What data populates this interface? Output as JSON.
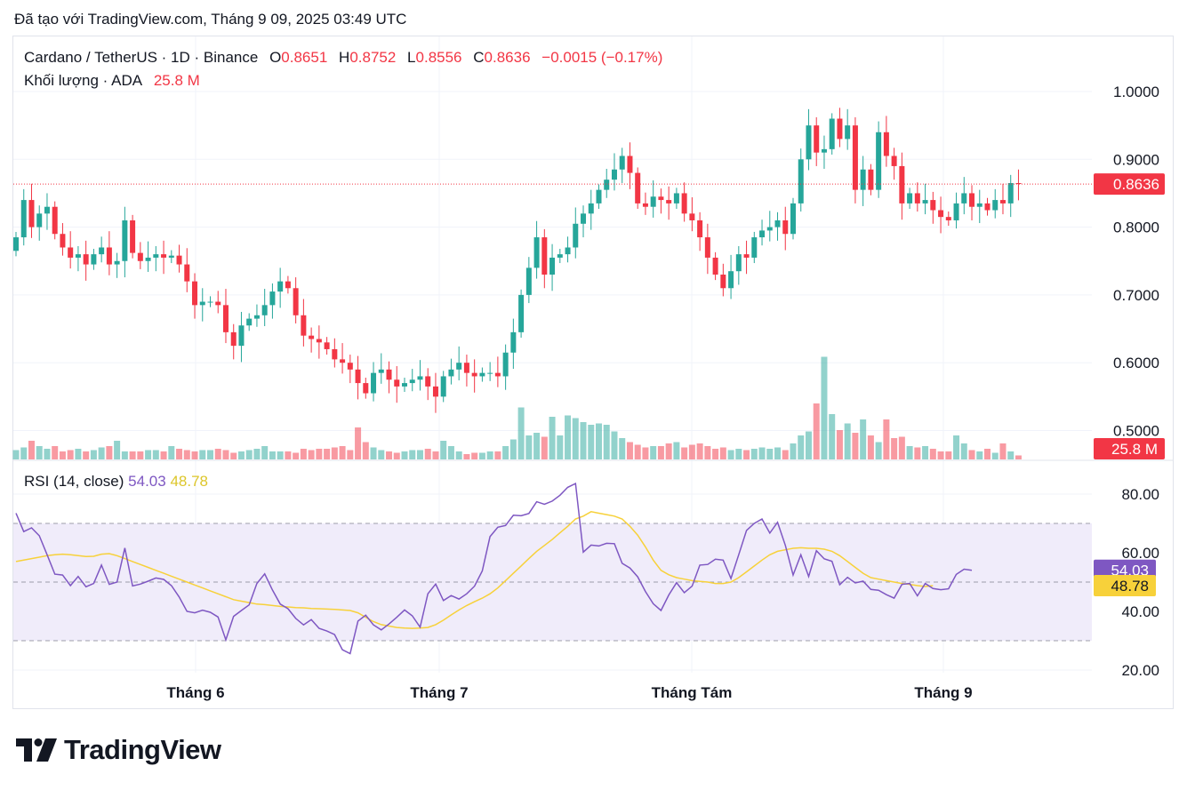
{
  "caption": "Đã tạo với TradingView.com, Tháng 9 09, 2025 03:49 UTC",
  "brand": "TradingView",
  "legend": {
    "symbol": "Cardano / TetherUS · 1D · Binance",
    "o_label": "O",
    "o_value": "0.8651",
    "h_label": "H",
    "h_value": "0.8752",
    "l_label": "L",
    "l_value": "0.8556",
    "c_label": "C",
    "c_value": "0.8636",
    "change": "−0.0015 (−0.17%)",
    "volume_label": "Khối lượng · ADA",
    "volume_value": "25.8 M"
  },
  "rsi_legend": {
    "label": "RSI (14, close)",
    "rsi_value": "54.03",
    "ma_value": "48.78"
  },
  "colors": {
    "up": "#26a69a",
    "down": "#f23645",
    "rsi": "#7e57c2",
    "rsi_ma": "#f7d13a",
    "rsi_band_fill": "#f0ecfa"
  },
  "chart_data": [
    {
      "type": "candlestick",
      "title": "Cardano / TetherUS · 1D · Binance",
      "price_axis_ticks": [
        "1.0000",
        "0.9000",
        "0.8000",
        "0.7000",
        "0.6000",
        "0.5000"
      ],
      "ylim": [
        0.5,
        1.0
      ],
      "x_tick_labels": [
        "Tháng 6",
        "Tháng 7",
        "Tháng Tám",
        "Tháng 9"
      ],
      "last_price_label": "0.8636",
      "volume_label": "25.8 M",
      "close": [
        0.785,
        0.84,
        0.8,
        0.82,
        0.83,
        0.79,
        0.77,
        0.755,
        0.76,
        0.745,
        0.76,
        0.77,
        0.745,
        0.75,
        0.81,
        0.762,
        0.75,
        0.755,
        0.76,
        0.755,
        0.758,
        0.745,
        0.72,
        0.685,
        0.69,
        0.69,
        0.685,
        0.645,
        0.625,
        0.655,
        0.665,
        0.67,
        0.685,
        0.705,
        0.72,
        0.71,
        0.67,
        0.64,
        0.635,
        0.63,
        0.62,
        0.605,
        0.6,
        0.59,
        0.57,
        0.555,
        0.585,
        0.59,
        0.575,
        0.565,
        0.57,
        0.575,
        0.58,
        0.565,
        0.55,
        0.58,
        0.59,
        0.6,
        0.585,
        0.58,
        0.585,
        0.585,
        0.58,
        0.615,
        0.645,
        0.7,
        0.74,
        0.785,
        0.73,
        0.755,
        0.76,
        0.77,
        0.805,
        0.82,
        0.835,
        0.855,
        0.87,
        0.885,
        0.905,
        0.88,
        0.835,
        0.83,
        0.845,
        0.84,
        0.835,
        0.85,
        0.82,
        0.81,
        0.785,
        0.755,
        0.73,
        0.71,
        0.735,
        0.76,
        0.755,
        0.785,
        0.795,
        0.8,
        0.81,
        0.79,
        0.835,
        0.9,
        0.95,
        0.91,
        0.915,
        0.96,
        0.93,
        0.95,
        0.855,
        0.885,
        0.855,
        0.94,
        0.905,
        0.89,
        0.835,
        0.85,
        0.835,
        0.84,
        0.825,
        0.815,
        0.81,
        0.835,
        0.85,
        0.83,
        0.835,
        0.825,
        0.84,
        0.835,
        0.865,
        0.8636
      ],
      "volume_relative": [
        0.35,
        0.45,
        0.7,
        0.5,
        0.4,
        0.5,
        0.3,
        0.35,
        0.4,
        0.3,
        0.35,
        0.45,
        0.5,
        0.7,
        0.3,
        0.3,
        0.3,
        0.35,
        0.35,
        0.3,
        0.5,
        0.4,
        0.35,
        0.3,
        0.35,
        0.35,
        0.4,
        0.35,
        0.25,
        0.3,
        0.35,
        0.4,
        0.5,
        0.3,
        0.3,
        0.3,
        0.25,
        0.4,
        0.35,
        0.4,
        0.4,
        0.45,
        0.5,
        0.35,
        1.2,
        0.65,
        0.45,
        0.35,
        0.3,
        0.25,
        0.3,
        0.35,
        0.35,
        0.4,
        0.3,
        0.7,
        0.5,
        0.3,
        0.2,
        0.25,
        0.25,
        0.3,
        0.3,
        0.5,
        0.75,
        1.95,
        0.9,
        1.0,
        0.85,
        1.6,
        0.9,
        1.65,
        1.55,
        1.4,
        1.3,
        1.35,
        1.3,
        1.05,
        0.8,
        0.65,
        0.55,
        0.45,
        0.5,
        0.5,
        0.6,
        0.65,
        0.45,
        0.55,
        0.6,
        0.5,
        0.4,
        0.45,
        0.35,
        0.4,
        0.35,
        0.4,
        0.45,
        0.4,
        0.45,
        0.35,
        0.6,
        0.9,
        1.05,
        2.1,
        3.85,
        1.7,
        1.1,
        1.35,
        1.0,
        1.5,
        0.9,
        0.65,
        1.5,
        0.8,
        0.85,
        0.5,
        0.45,
        0.5,
        0.4,
        0.3,
        0.3,
        0.9,
        0.6,
        0.35,
        0.3,
        0.4,
        0.25,
        0.6,
        0.3,
        0.15
      ]
    },
    {
      "type": "line",
      "title": "RSI (14, close)",
      "ylim": [
        20,
        85
      ],
      "y_tick_labels": [
        "80.00",
        "60.00",
        "40.00",
        "20.00"
      ],
      "bands": {
        "upper": 70,
        "middle": 50,
        "lower": 30
      },
      "series": [
        {
          "name": "RSI",
          "values": [
            73.5,
            67.2,
            68.5,
            65.8,
            59.3,
            52.7,
            52.4,
            48.8,
            51.9,
            48.4,
            49.5,
            55.8,
            49.2,
            50.0,
            61.6,
            48.7,
            49.3,
            50.3,
            51.4,
            50.9,
            48.8,
            44.9,
            40.0,
            39.5,
            40.4,
            39.7,
            38.1,
            30.3,
            38.3,
            40.3,
            42.2,
            49.5,
            52.8,
            47.3,
            42.5,
            40.9,
            37.6,
            35.4,
            37.2,
            34.2,
            33.3,
            32.1,
            26.9,
            25.6,
            36.7,
            38.7,
            35.4,
            33.7,
            35.7,
            38.0,
            40.5,
            38.5,
            34.6,
            46.0,
            49.3,
            43.7,
            45.4,
            44.2,
            46.0,
            48.6,
            53.8,
            65.5,
            68.7,
            69.3,
            72.8,
            72.6,
            73.4,
            77.4,
            76.5,
            77.6,
            79.6,
            82.3,
            83.6,
            60.2,
            62.6,
            62.3,
            63.2,
            63.1,
            56.4,
            54.8,
            51.8,
            46.8,
            42.6,
            40.3,
            45.6,
            49.8,
            46.4,
            48.6,
            55.8,
            56.0,
            57.8,
            57.5,
            51.2,
            59.3,
            67.6,
            70.0,
            71.5,
            66.7,
            70.4,
            62.5,
            52.4,
            59.3,
            51.9,
            60.7,
            57.9,
            57.1,
            49.1,
            51.6,
            49.7,
            50.3,
            47.5,
            47.2,
            45.7,
            44.5,
            49.2,
            49.5,
            45.3,
            49.5,
            47.8,
            47.4,
            47.7,
            52.6,
            54.4,
            54.03
          ]
        },
        {
          "name": "RSI-based MA",
          "values": [
            57.0,
            57.5,
            58.0,
            58.5,
            59.0,
            59.3,
            59.5,
            59.3,
            59.0,
            58.7,
            58.8,
            59.5,
            59.7,
            59.0,
            58.0,
            57.0,
            56.0,
            55.0,
            54.0,
            53.0,
            52.0,
            51.0,
            50.0,
            49.0,
            48.0,
            47.0,
            46.0,
            45.0,
            44.0,
            43.5,
            43.0,
            42.5,
            42.3,
            42.0,
            41.7,
            41.5,
            41.3,
            41.2,
            41.0,
            40.9,
            40.8,
            40.7,
            40.5,
            40.3,
            39.5,
            38.0,
            36.5,
            35.5,
            35.0,
            34.5,
            34.3,
            34.2,
            34.3,
            34.5,
            35.5,
            37.0,
            38.8,
            40.5,
            42.0,
            43.3,
            44.5,
            46.0,
            48.0,
            50.5,
            53.0,
            55.5,
            58.0,
            60.5,
            62.5,
            64.5,
            66.8,
            69.0,
            71.5,
            72.5,
            74.0,
            73.5,
            73.0,
            72.5,
            71.5,
            69.0,
            66.0,
            62.0,
            57.5,
            54.0,
            52.5,
            51.5,
            51.0,
            50.5,
            50.2,
            50.0,
            49.5,
            49.5,
            50.0,
            51.5,
            53.5,
            55.5,
            57.5,
            59.3,
            60.5,
            61.0,
            61.5,
            61.7,
            61.5,
            61.5,
            61.2,
            60.5,
            59.0,
            57.0,
            55.0,
            53.0,
            51.5,
            51.0,
            50.5,
            50.0,
            49.5,
            49.2,
            48.8,
            48.5,
            48.78
          ]
        }
      ]
    }
  ]
}
